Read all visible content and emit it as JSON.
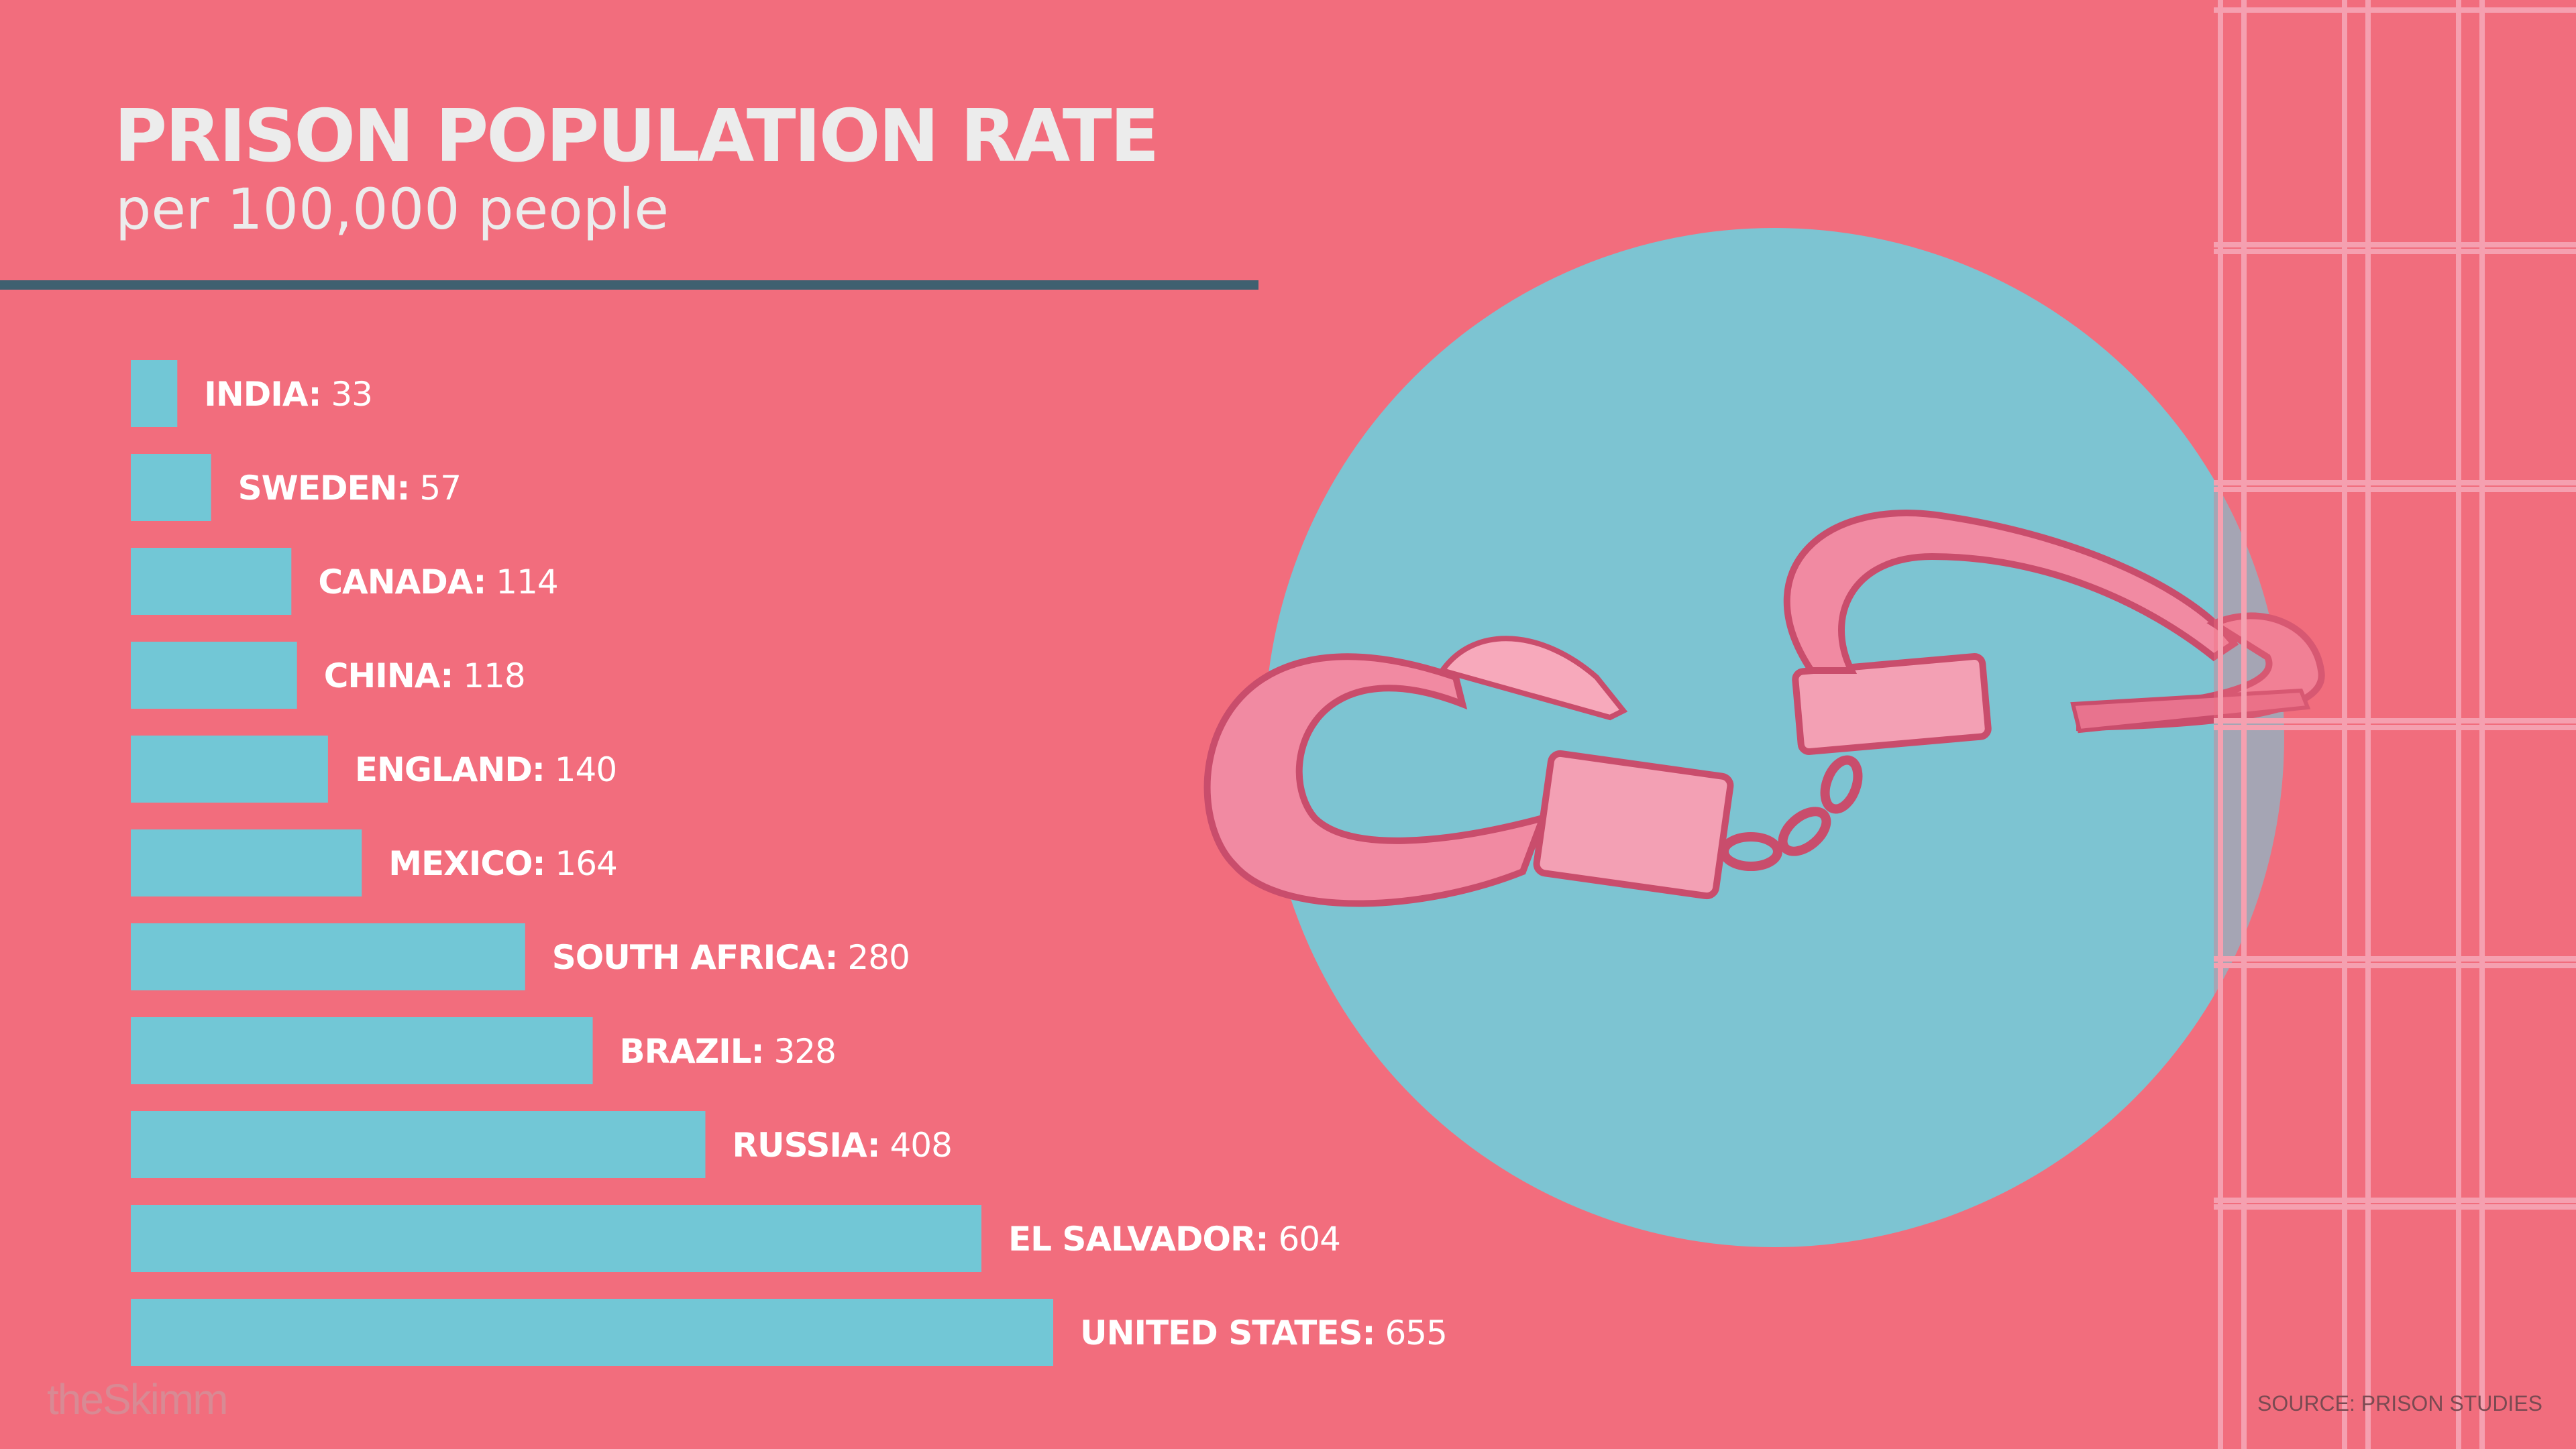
{
  "header": {
    "title": "PRISON POPULATION RATE",
    "subtitle": "per 100,000 people"
  },
  "chart_data": {
    "type": "bar",
    "orientation": "horizontal",
    "title": "PRISON POPULATION RATE",
    "subtitle": "per 100,000 people",
    "categories": [
      "INDIA",
      "SWEDEN",
      "CANADA",
      "CHINA",
      "ENGLAND",
      "MEXICO",
      "SOUTH AFRICA",
      "BRAZIL",
      "RUSSIA",
      "EL SALVADOR",
      "UNITED STATES"
    ],
    "values": [
      33,
      57,
      114,
      118,
      140,
      164,
      280,
      328,
      408,
      604,
      655
    ],
    "xlabel": "",
    "ylabel": "",
    "grid": false,
    "legend": "none"
  },
  "colors": {
    "background": "#f26d7d",
    "bar": "#72c7d6",
    "circle": "#7dc4d2",
    "rule": "#3f6070",
    "label": "#ffffff"
  },
  "illustration": {
    "icon": "handcuffs-icon",
    "decor": "jail-bars"
  },
  "footer": {
    "brand": "theSkimm",
    "source": "SOURCE: PRISON STUDIES"
  }
}
